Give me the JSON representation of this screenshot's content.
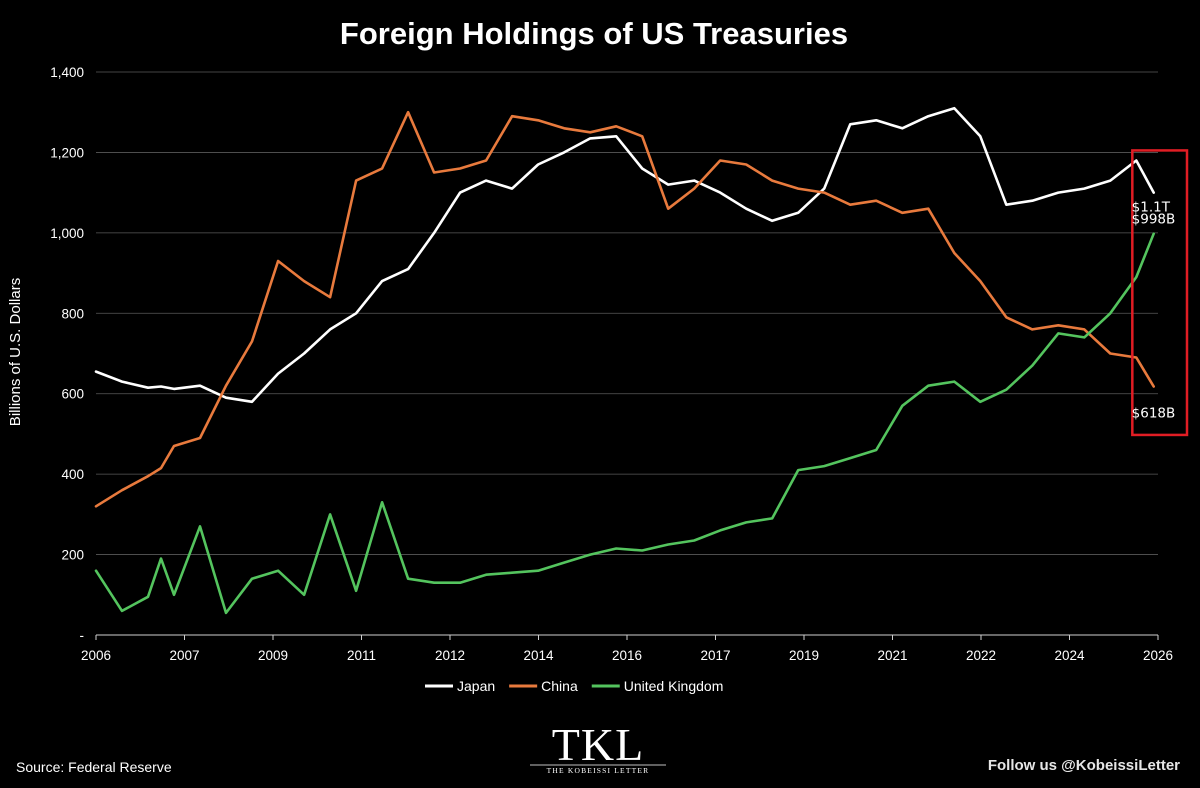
{
  "chart_data": {
    "type": "line",
    "title": "Foreign Holdings of US Treasuries",
    "ylabel": "Billions of U.S. Dollars",
    "xlabel": "",
    "ylim": [
      0,
      1400
    ],
    "y_ticks": [
      {
        "value": 0,
        "label": "-"
      },
      {
        "value": 200,
        "label": "200"
      },
      {
        "value": 400,
        "label": "400"
      },
      {
        "value": 600,
        "label": "600"
      },
      {
        "value": 800,
        "label": "800"
      },
      {
        "value": 1000,
        "label": "1,000"
      },
      {
        "value": 1200,
        "label": "1,200"
      },
      {
        "value": 1400,
        "label": "1,400"
      }
    ],
    "x_tick_labels": [
      "2006",
      "2007",
      "2009",
      "2011",
      "2012",
      "2014",
      "2016",
      "2017",
      "2019",
      "2021",
      "2022",
      "2024",
      "2026"
    ],
    "xlim": [
      "2006-01",
      "2026-06"
    ],
    "x": [
      "2006-01",
      "2006-07",
      "2007-01",
      "2007-04",
      "2007-07",
      "2008-01",
      "2008-07",
      "2009-01",
      "2009-07",
      "2010-01",
      "2010-07",
      "2011-01",
      "2011-07",
      "2012-01",
      "2012-07",
      "2013-01",
      "2013-07",
      "2014-01",
      "2014-07",
      "2015-01",
      "2015-07",
      "2016-01",
      "2016-07",
      "2017-01",
      "2017-07",
      "2018-01",
      "2018-07",
      "2019-01",
      "2019-07",
      "2020-01",
      "2020-07",
      "2021-01",
      "2021-07",
      "2022-01",
      "2022-07",
      "2023-01",
      "2023-07",
      "2024-01",
      "2024-07",
      "2025-01",
      "2025-07",
      "2026-01",
      "2026-05"
    ],
    "grid": true,
    "legend_position": "bottom",
    "series": [
      {
        "name": "Japan",
        "color": "#ffffff",
        "values": [
          655,
          630,
          615,
          618,
          612,
          620,
          590,
          580,
          650,
          700,
          760,
          800,
          880,
          910,
          1000,
          1100,
          1130,
          1110,
          1170,
          1200,
          1235,
          1240,
          1160,
          1120,
          1130,
          1100,
          1060,
          1030,
          1050,
          1110,
          1270,
          1280,
          1260,
          1290,
          1310,
          1240,
          1070,
          1080,
          1100,
          1110,
          1130,
          1180,
          1100
        ]
      },
      {
        "name": "China",
        "color": "#e87a3d",
        "values": [
          320,
          360,
          395,
          415,
          470,
          490,
          620,
          730,
          930,
          880,
          840,
          1130,
          1160,
          1300,
          1150,
          1160,
          1180,
          1290,
          1280,
          1260,
          1250,
          1265,
          1240,
          1060,
          1110,
          1180,
          1170,
          1130,
          1110,
          1100,
          1070,
          1080,
          1050,
          1060,
          950,
          880,
          790,
          760,
          770,
          760,
          700,
          690,
          618
        ]
      },
      {
        "name": "United Kingdom",
        "color": "#54c45e",
        "values": [
          160,
          60,
          95,
          190,
          100,
          270,
          55,
          140,
          160,
          100,
          300,
          110,
          330,
          140,
          130,
          130,
          150,
          155,
          160,
          180,
          200,
          215,
          210,
          225,
          235,
          260,
          280,
          290,
          410,
          420,
          440,
          460,
          570,
          620,
          630,
          580,
          610,
          670,
          750,
          740,
          800,
          890,
          998
        ]
      }
    ],
    "annotations": [
      {
        "series": "Japan",
        "text": "$1.1T"
      },
      {
        "series": "United Kingdom",
        "text": "$998B"
      },
      {
        "series": "China",
        "text": "$618B"
      }
    ],
    "highlight_box_color": "#e11d24"
  },
  "footer": {
    "source": "Source: Federal Reserve",
    "follow": "Follow us @KobeissiLetter"
  },
  "logo": {
    "mark": "TKL",
    "tagline": "THE KOBEISSI LETTER"
  }
}
